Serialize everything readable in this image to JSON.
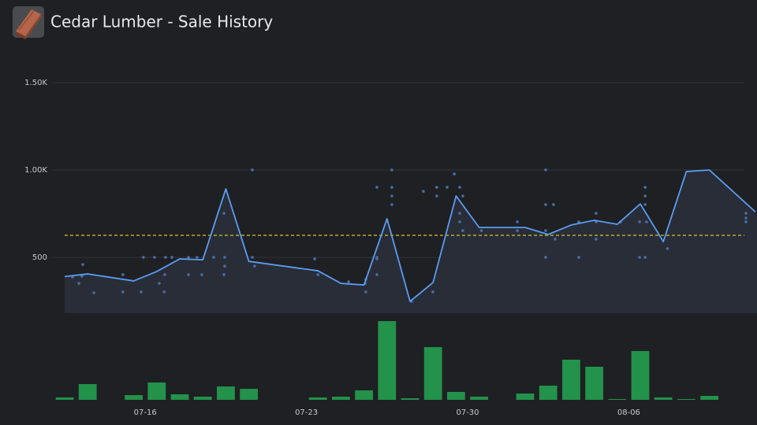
{
  "chart_data": {
    "type": "line",
    "title": "Cedar Lumber - Sale History",
    "xlim": [
      0,
      30
    ],
    "xticks": [
      {
        "value": 3.5,
        "label": "07-16"
      },
      {
        "value": 10.5,
        "label": "07-23"
      },
      {
        "value": 17.5,
        "label": "07-30"
      },
      {
        "value": 24.5,
        "label": "08-06"
      }
    ],
    "ylim": [
      180,
      1600
    ],
    "yticks": [
      500,
      {
        "value": 1000,
        "label": "1.00K"
      },
      {
        "value": 1500,
        "label": "1.50K"
      }
    ],
    "grid": true,
    "line": {
      "color": "#5b9cf0",
      "fill": "#282d38",
      "x": [
        0,
        1,
        3,
        4,
        5,
        6,
        7,
        8,
        11,
        12,
        13,
        14,
        15,
        16,
        17,
        18,
        19,
        20,
        21,
        22,
        23,
        24,
        25,
        26,
        27,
        28,
        30
      ],
      "values": [
        390,
        405,
        365,
        419,
        491,
        486,
        892,
        477,
        423,
        351,
        342,
        721,
        248,
        356,
        851,
        671,
        671,
        671,
        631,
        685,
        712,
        689,
        806,
        590,
        991,
        1000,
        760
      ]
    },
    "sales": {
      "color": "#4a6ea0",
      "x": [
        0.34,
        0.62,
        0.75,
        0.79,
        1.27,
        2.53,
        2.53,
        3.32,
        3.42,
        3.9,
        4.11,
        4.32,
        4.35,
        4.38,
        4.66,
        5.38,
        5.38,
        5.75,
        5.96,
        6.47,
        6.92,
        6.95,
        6.95,
        6.92,
        8.15,
        8.15,
        8.25,
        10.86,
        11,
        12.33,
        13.05,
        13.08,
        13.08,
        13.56,
        13.56,
        13.56,
        13.56,
        14.21,
        14.21,
        14.21,
        14.21,
        15.07,
        15.58,
        15.99,
        16.16,
        16.16,
        16.61,
        16.92,
        17.16,
        17.16,
        17.16,
        17.29,
        17.29,
        18.1,
        19.66,
        19.66,
        20.89,
        20.89,
        20.89,
        20.89,
        21.23,
        21.3,
        22.33,
        22.33,
        23.08,
        23.08,
        23.08,
        24.14,
        24.97,
        24.97,
        25.21,
        25.21,
        25.21,
        25.27,
        25.21,
        26.18,
        29.59,
        29.59,
        29.59
      ],
      "values": [
        387,
        351,
        392,
        459,
        297,
        302,
        401,
        302,
        500,
        500,
        351,
        302,
        401,
        500,
        500,
        401,
        500,
        500,
        401,
        500,
        752,
        500,
        450,
        401,
        1000,
        500,
        450,
        491,
        401,
        360,
        351,
        302,
        374,
        901,
        491,
        401,
        500,
        1000,
        901,
        851,
        802,
        248,
        878,
        302,
        901,
        851,
        901,
        977,
        901,
        752,
        703,
        851,
        653,
        653,
        703,
        653,
        1000,
        802,
        653,
        500,
        802,
        604,
        703,
        500,
        752,
        703,
        604,
        703,
        703,
        500,
        901,
        851,
        802,
        703,
        500,
        550,
        752,
        703,
        725
      ]
    },
    "average": {
      "value": 626,
      "color": "#d8c62a"
    },
    "volume": {
      "color": "#23924a",
      "ylim": [
        0,
        100
      ],
      "x": [
        0,
        1,
        3,
        4,
        5,
        6,
        7,
        8,
        11,
        12,
        13,
        14,
        15,
        16,
        17,
        18,
        20,
        21,
        22,
        23,
        24,
        25,
        26,
        27,
        28
      ],
      "values": [
        3,
        20,
        6,
        22,
        7,
        4,
        17,
        14,
        3,
        4,
        12,
        100,
        2,
        67,
        10,
        4,
        8,
        18,
        51,
        42,
        1,
        62,
        3,
        1,
        5
      ]
    }
  }
}
